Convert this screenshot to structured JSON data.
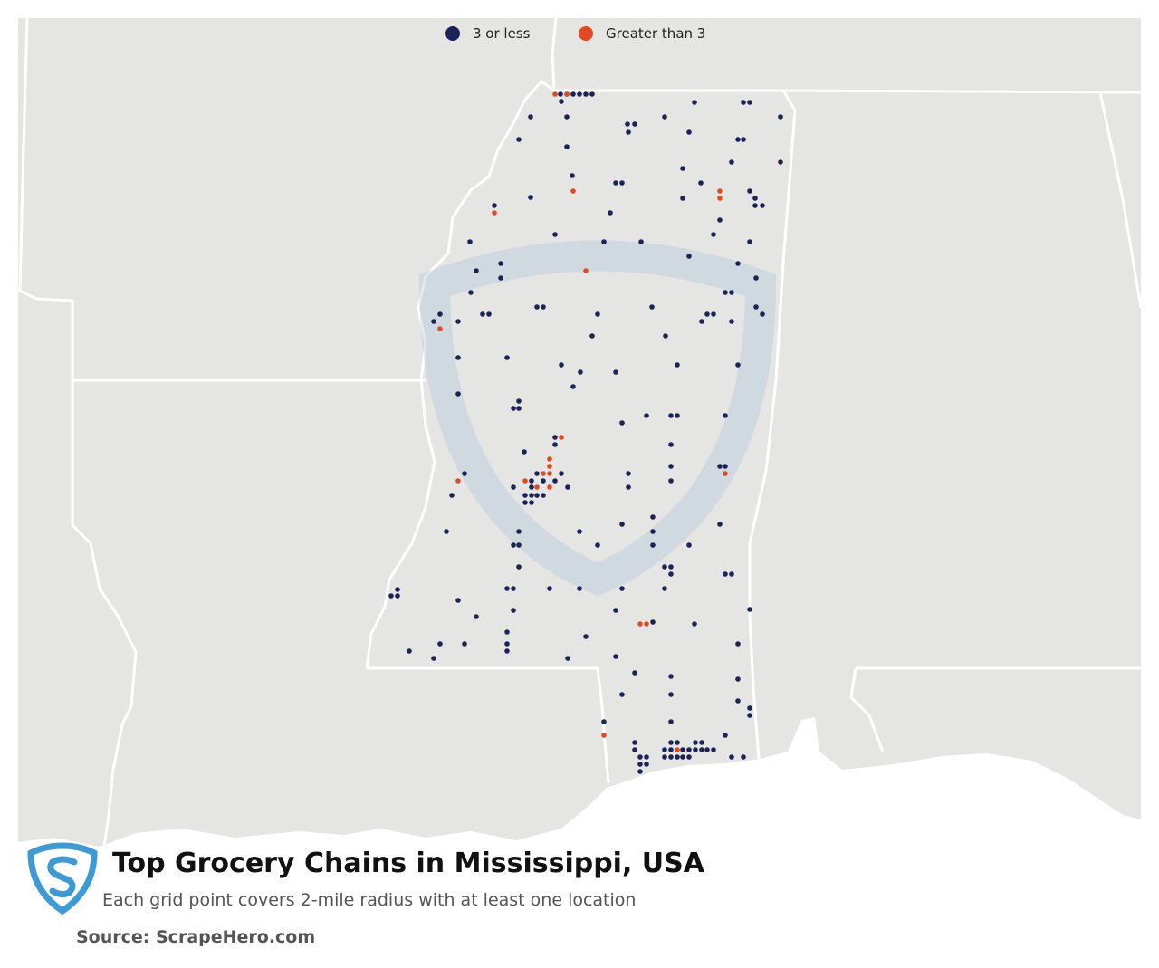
{
  "legend": {
    "items": [
      {
        "label": "3 or less",
        "color": "#1b2357"
      },
      {
        "label": "Greater than 3",
        "color": "#e34a21"
      }
    ]
  },
  "title": "Top Grocery Chains in Mississippi, USA",
  "subtitle": "Each grid point covers 2-mile radius with at least one location",
  "source": "Source: ScrapeHero.com",
  "colors": {
    "land": "#e5e5e4",
    "water": "#ffffff",
    "border": "#ffffff",
    "brand": "#3d9ad4"
  },
  "icons": {
    "logo": "scrapehero-shield-icon"
  }
}
